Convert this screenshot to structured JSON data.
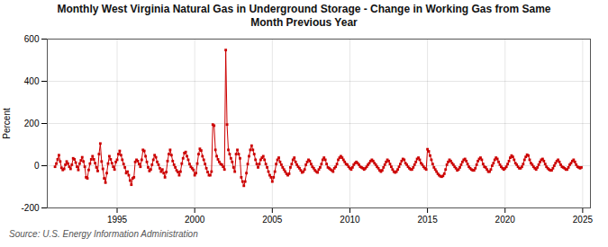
{
  "chart_data": {
    "type": "line",
    "title": "Monthly West Virginia Natural Gas in Underground Storage - Change in Working Gas from Same\nMonth Previous Year",
    "ylabel": "Percent",
    "source": "Source: U.S. Energy Information Administration",
    "color": "#cc0000",
    "marker": "square",
    "grid": true,
    "xlim": [
      1990.5,
      2025.5
    ],
    "xticks": [
      1995,
      2000,
      2005,
      2010,
      2015,
      2020,
      2025
    ],
    "ylim": [
      -200,
      600
    ],
    "yticks": [
      -200,
      0,
      200,
      400,
      600
    ],
    "x": [
      1991.0,
      1991.083,
      1991.167,
      1991.25,
      1991.333,
      1991.417,
      1991.5,
      1991.583,
      1991.667,
      1991.75,
      1991.833,
      1991.917,
      1992.0,
      1992.083,
      1992.167,
      1992.25,
      1992.333,
      1992.417,
      1992.5,
      1992.583,
      1992.667,
      1992.75,
      1992.833,
      1992.917,
      1993.0,
      1993.083,
      1993.167,
      1993.25,
      1993.333,
      1993.417,
      1993.5,
      1993.583,
      1993.667,
      1993.75,
      1993.833,
      1993.917,
      1994.0,
      1994.083,
      1994.167,
      1994.25,
      1994.333,
      1994.417,
      1994.5,
      1994.583,
      1994.667,
      1994.75,
      1994.833,
      1994.917,
      1995.0,
      1995.083,
      1995.167,
      1995.25,
      1995.333,
      1995.417,
      1995.5,
      1995.583,
      1995.667,
      1995.75,
      1995.833,
      1995.917,
      1996.0,
      1996.083,
      1996.167,
      1996.25,
      1996.333,
      1996.417,
      1996.5,
      1996.583,
      1996.667,
      1996.75,
      1996.833,
      1996.917,
      1997.0,
      1997.083,
      1997.167,
      1997.25,
      1997.333,
      1997.417,
      1997.5,
      1997.583,
      1997.667,
      1997.75,
      1997.833,
      1997.917,
      1998.0,
      1998.083,
      1998.167,
      1998.25,
      1998.333,
      1998.417,
      1998.5,
      1998.583,
      1998.667,
      1998.75,
      1998.833,
      1998.917,
      1999.0,
      1999.083,
      1999.167,
      1999.25,
      1999.333,
      1999.417,
      1999.5,
      1999.583,
      1999.667,
      1999.75,
      1999.833,
      1999.917,
      2000.0,
      2000.083,
      2000.167,
      2000.25,
      2000.333,
      2000.417,
      2000.5,
      2000.583,
      2000.667,
      2000.75,
      2000.833,
      2000.917,
      2001.0,
      2001.083,
      2001.167,
      2001.25,
      2001.333,
      2001.417,
      2001.5,
      2001.583,
      2001.667,
      2001.75,
      2001.833,
      2001.917,
      2002.0,
      2002.083,
      2002.167,
      2002.25,
      2002.333,
      2002.417,
      2002.5,
      2002.583,
      2002.667,
      2002.75,
      2002.833,
      2002.917,
      2003.0,
      2003.083,
      2003.167,
      2003.25,
      2003.333,
      2003.417,
      2003.5,
      2003.583,
      2003.667,
      2003.75,
      2003.833,
      2003.917,
      2004.0,
      2004.083,
      2004.167,
      2004.25,
      2004.333,
      2004.417,
      2004.5,
      2004.583,
      2004.667,
      2004.75,
      2004.833,
      2004.917,
      2005.0,
      2005.083,
      2005.167,
      2005.25,
      2005.333,
      2005.417,
      2005.5,
      2005.583,
      2005.667,
      2005.75,
      2005.833,
      2005.917,
      2006.0,
      2006.083,
      2006.167,
      2006.25,
      2006.333,
      2006.417,
      2006.5,
      2006.583,
      2006.667,
      2006.75,
      2006.833,
      2006.917,
      2007.0,
      2007.083,
      2007.167,
      2007.25,
      2007.333,
      2007.417,
      2007.5,
      2007.583,
      2007.667,
      2007.75,
      2007.833,
      2007.917,
      2008.0,
      2008.083,
      2008.167,
      2008.25,
      2008.333,
      2008.417,
      2008.5,
      2008.583,
      2008.667,
      2008.75,
      2008.833,
      2008.917,
      2009.0,
      2009.083,
      2009.167,
      2009.25,
      2009.333,
      2009.417,
      2009.5,
      2009.583,
      2009.667,
      2009.75,
      2009.833,
      2009.917,
      2010.0,
      2010.083,
      2010.167,
      2010.25,
      2010.333,
      2010.417,
      2010.5,
      2010.583,
      2010.667,
      2010.75,
      2010.833,
      2010.917,
      2011.0,
      2011.083,
      2011.167,
      2011.25,
      2011.333,
      2011.417,
      2011.5,
      2011.583,
      2011.667,
      2011.75,
      2011.833,
      2011.917,
      2012.0,
      2012.083,
      2012.167,
      2012.25,
      2012.333,
      2012.417,
      2012.5,
      2012.583,
      2012.667,
      2012.75,
      2012.833,
      2012.917,
      2013.0,
      2013.083,
      2013.167,
      2013.25,
      2013.333,
      2013.417,
      2013.5,
      2013.583,
      2013.667,
      2013.75,
      2013.833,
      2013.917,
      2014.0,
      2014.083,
      2014.167,
      2014.25,
      2014.333,
      2014.417,
      2014.5,
      2014.583,
      2014.667,
      2014.75,
      2014.833,
      2014.917,
      2015.0,
      2015.083,
      2015.167,
      2015.25,
      2015.333,
      2015.417,
      2015.5,
      2015.583,
      2015.667,
      2015.75,
      2015.833,
      2015.917,
      2016.0,
      2016.083,
      2016.167,
      2016.25,
      2016.333,
      2016.417,
      2016.5,
      2016.583,
      2016.667,
      2016.75,
      2016.833,
      2016.917,
      2017.0,
      2017.083,
      2017.167,
      2017.25,
      2017.333,
      2017.417,
      2017.5,
      2017.583,
      2017.667,
      2017.75,
      2017.833,
      2017.917,
      2018.0,
      2018.083,
      2018.167,
      2018.25,
      2018.333,
      2018.417,
      2018.5,
      2018.583,
      2018.667,
      2018.75,
      2018.833,
      2018.917,
      2019.0,
      2019.083,
      2019.167,
      2019.25,
      2019.333,
      2019.417,
      2019.5,
      2019.583,
      2019.667,
      2019.75,
      2019.833,
      2019.917,
      2020.0,
      2020.083,
      2020.167,
      2020.25,
      2020.333,
      2020.417,
      2020.5,
      2020.583,
      2020.667,
      2020.75,
      2020.833,
      2020.917,
      2021.0,
      2021.083,
      2021.167,
      2021.25,
      2021.333,
      2021.417,
      2021.5,
      2021.583,
      2021.667,
      2021.75,
      2021.833,
      2021.917,
      2022.0,
      2022.083,
      2022.167,
      2022.25,
      2022.333,
      2022.417,
      2022.5,
      2022.583,
      2022.667,
      2022.75,
      2022.833,
      2022.917,
      2023.0,
      2023.083,
      2023.167,
      2023.25,
      2023.333,
      2023.417,
      2023.5,
      2023.583,
      2023.667,
      2023.75,
      2023.833,
      2023.917,
      2024.0,
      2024.083,
      2024.167,
      2024.25,
      2024.333,
      2024.417,
      2024.5,
      2024.583,
      2024.667,
      2024.75,
      2024.833,
      2024.917
    ],
    "values": [
      -5,
      10,
      30,
      50,
      20,
      -10,
      -20,
      -15,
      5,
      20,
      10,
      -5,
      -15,
      5,
      35,
      30,
      15,
      -5,
      -20,
      10,
      25,
      40,
      20,
      -5,
      -55,
      -60,
      -20,
      10,
      30,
      45,
      30,
      12,
      -8,
      -25,
      55,
      105,
      20,
      -15,
      -60,
      -80,
      -35,
      10,
      45,
      30,
      12,
      -5,
      -18,
      18,
      28,
      55,
      70,
      50,
      28,
      8,
      -8,
      -35,
      -28,
      -45,
      -70,
      -90,
      -60,
      -55,
      18,
      28,
      22,
      8,
      -5,
      28,
      75,
      70,
      45,
      18,
      -8,
      -25,
      -18,
      5,
      28,
      50,
      40,
      18,
      5,
      -12,
      -28,
      -18,
      -35,
      -55,
      -30,
      22,
      55,
      75,
      50,
      22,
      5,
      -8,
      -22,
      -30,
      -45,
      -28,
      10,
      35,
      60,
      65,
      45,
      28,
      8,
      -5,
      -12,
      -20,
      -45,
      -35,
      10,
      55,
      80,
      72,
      45,
      28,
      8,
      -12,
      -30,
      -45,
      -45,
      -28,
      195,
      190,
      75,
      45,
      30,
      18,
      8,
      5,
      -5,
      -18,
      548,
      195,
      75,
      55,
      35,
      18,
      -8,
      -28,
      55,
      75,
      55,
      35,
      -55,
      -75,
      -95,
      -75,
      -35,
      8,
      45,
      75,
      95,
      75,
      55,
      28,
      8,
      -8,
      8,
      28,
      38,
      45,
      28,
      8,
      -8,
      -28,
      -45,
      -55,
      -75,
      -55,
      -28,
      8,
      28,
      38,
      18,
      5,
      -8,
      -18,
      -28,
      -38,
      -45,
      -38,
      -8,
      8,
      28,
      38,
      18,
      5,
      -5,
      -12,
      -22,
      -32,
      -28,
      -18,
      5,
      18,
      28,
      22,
      8,
      -5,
      -12,
      -22,
      -28,
      -32,
      -18,
      -8,
      8,
      28,
      38,
      28,
      8,
      -8,
      -12,
      -18,
      -22,
      -28,
      -12,
      -5,
      8,
      28,
      38,
      45,
      38,
      28,
      18,
      8,
      5,
      -5,
      -12,
      -18,
      -8,
      5,
      12,
      18,
      12,
      5,
      -5,
      -8,
      -12,
      -18,
      -12,
      -5,
      5,
      12,
      22,
      28,
      22,
      12,
      5,
      -5,
      -12,
      -22,
      -28,
      -22,
      -8,
      5,
      18,
      28,
      22,
      8,
      -5,
      -18,
      -28,
      -32,
      -28,
      -18,
      -5,
      8,
      22,
      32,
      28,
      12,
      5,
      -5,
      -12,
      -18,
      -18,
      -8,
      5,
      18,
      32,
      38,
      28,
      12,
      5,
      -5,
      -12,
      -18,
      78,
      68,
      48,
      28,
      8,
      -8,
      -18,
      -28,
      -38,
      -45,
      -50,
      -52,
      -48,
      -38,
      -18,
      5,
      18,
      28,
      22,
      12,
      5,
      -5,
      -12,
      -22,
      -18,
      -8,
      5,
      18,
      28,
      32,
      22,
      8,
      -5,
      -12,
      -18,
      -22,
      -22,
      -12,
      5,
      22,
      32,
      38,
      28,
      8,
      -5,
      -8,
      -18,
      -28,
      -28,
      -18,
      0,
      12,
      28,
      38,
      32,
      18,
      5,
      -5,
      -12,
      -18,
      -12,
      -5,
      8,
      22,
      38,
      48,
      42,
      28,
      12,
      5,
      -5,
      -12,
      -12,
      -5,
      8,
      28,
      42,
      52,
      48,
      28,
      12,
      5,
      -5,
      -12,
      -18,
      -8,
      5,
      18,
      28,
      32,
      22,
      8,
      -5,
      -12,
      -18,
      -22,
      -22,
      -12,
      0,
      12,
      22,
      28,
      18,
      5,
      -5,
      -8,
      -12,
      -18,
      -18,
      -8,
      5,
      12,
      22,
      28,
      18,
      5,
      -5,
      -8,
      -12,
      -8
    ]
  }
}
